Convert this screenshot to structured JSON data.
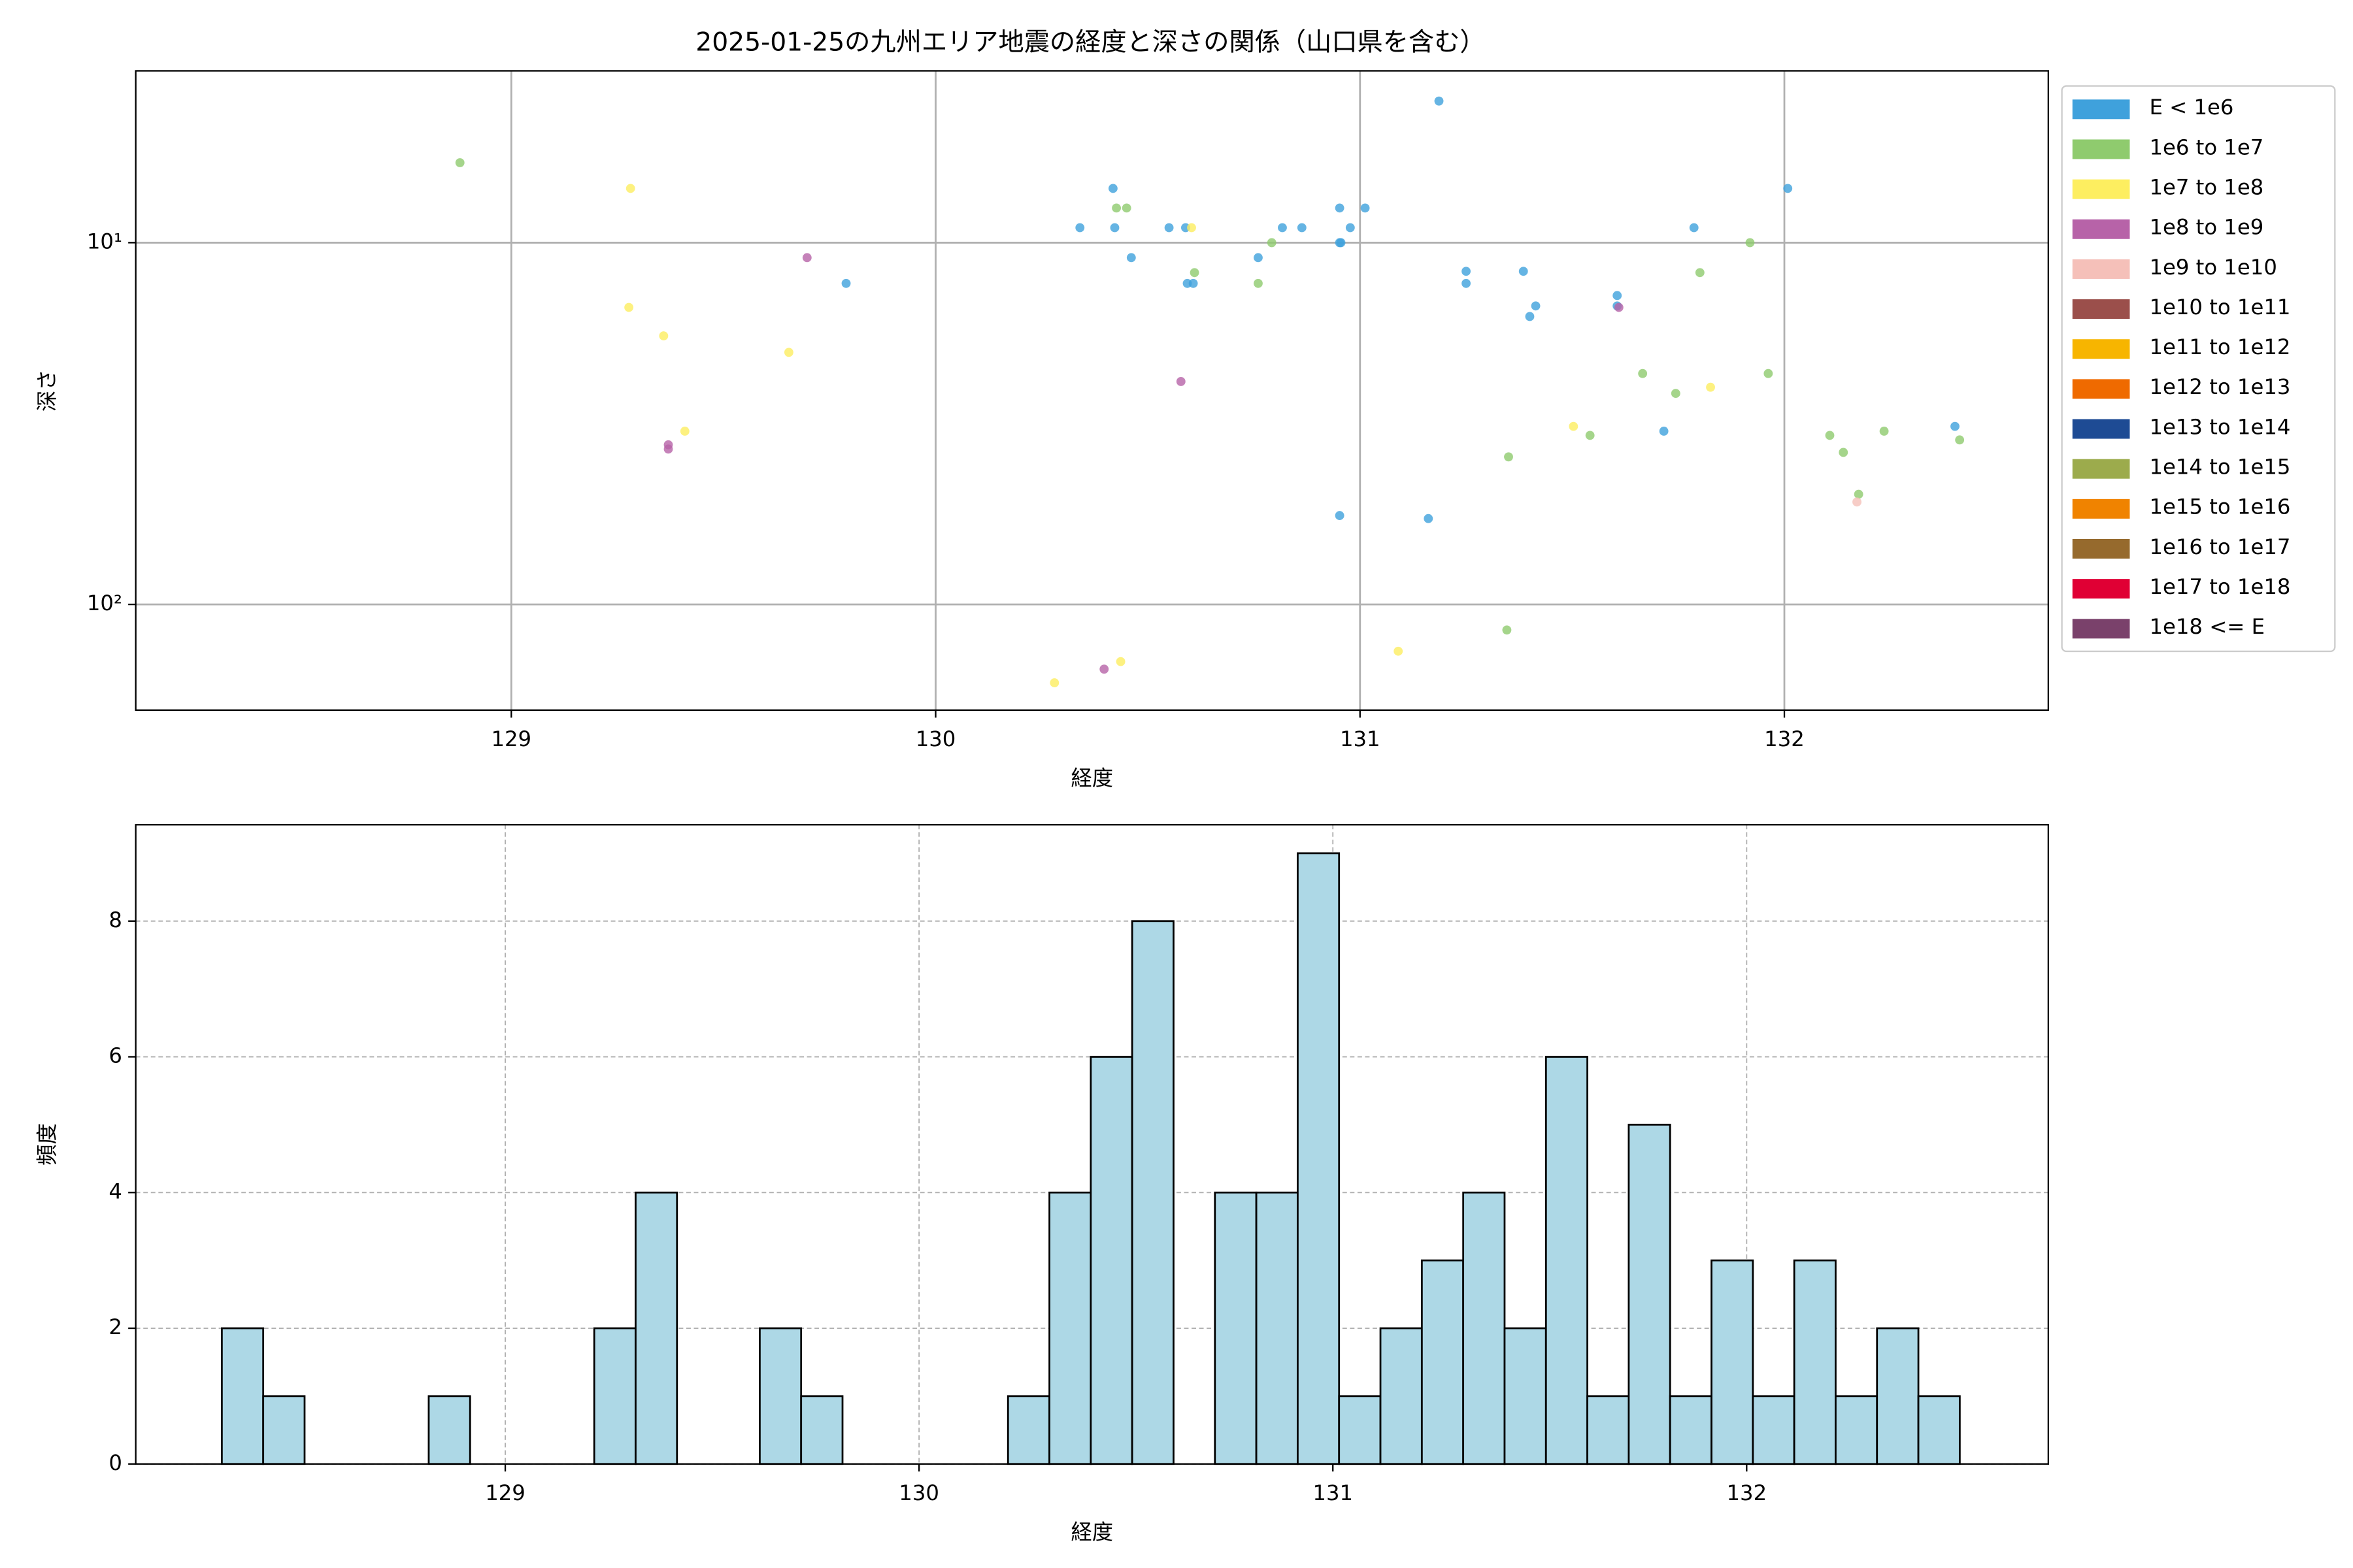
{
  "chart_data": [
    {
      "type": "scatter",
      "title": "2025-01-25の九州エリア地震の経度と深さの関係（山口県を含む）",
      "x_label": "経度",
      "y_label": "深さ",
      "xlim": [
        128.115,
        132.622
      ],
      "xticks": [
        129,
        130,
        131,
        132
      ],
      "ylim": [
        196,
        3.35
      ],
      "y_scale": "log",
      "yticks": [
        {
          "value": 10,
          "label": "10¹"
        },
        {
          "value": 100,
          "label": "10²"
        }
      ],
      "grid": true,
      "grid_linestyle": "solid",
      "legend": "outside right",
      "series": [
        {
          "name": "E < 1e6",
          "color": "#3fa1dc",
          "x": [
            131.186,
            130.418,
            130.34,
            130.422,
            130.55,
            130.589,
            130.461,
            130.593,
            130.607,
            130.817,
            130.863,
            130.952,
            131.012,
            130.977,
            130.952,
            130.955,
            130.76,
            129.789,
            131.25,
            131.25,
            131.385,
            131.414,
            131.4,
            131.606,
            131.606,
            131.787,
            132.008,
            131.716,
            132.402,
            130.952,
            131.161
          ],
          "values": [
            4.06,
            7.08,
            9.09,
            9.09,
            9.09,
            9.09,
            11.0,
            12.96,
            12.96,
            9.09,
            9.09,
            8.02,
            8.02,
            9.09,
            10,
            10,
            11.0,
            12.96,
            12.0,
            12.96,
            12.0,
            14.96,
            16.0,
            14.0,
            14.96,
            9.09,
            7.08,
            33.2,
            32.2,
            56.8,
            57.9
          ]
        },
        {
          "name": "1e6 to 1e7",
          "color": "#8fcb6e",
          "x": [
            128.879,
            130.426,
            130.45,
            130.61,
            130.792,
            130.76,
            131.919,
            131.801,
            131.666,
            131.962,
            131.744,
            131.542,
            131.35,
            132.107,
            132.235,
            132.139,
            132.175,
            132.413,
            131.346
          ],
          "values": [
            6.01,
            8.02,
            8.02,
            12.1,
            10,
            12.96,
            10,
            12.1,
            23.0,
            23.0,
            26.1,
            34.1,
            39.1,
            34.1,
            33.2,
            38.0,
            49.6,
            35.1,
            117.7
          ]
        },
        {
          "name": "1e7 to 1e8",
          "color": "#fdee60",
          "x": [
            129.281,
            129.277,
            129.359,
            129.654,
            129.409,
            130.603,
            131.503,
            131.826,
            131.09,
            130.436,
            130.28
          ],
          "values": [
            7.08,
            15.1,
            18.1,
            20.1,
            33.2,
            9.09,
            32.2,
            25.1,
            134.7,
            143.9,
            164.7
          ]
        },
        {
          "name": "1e8 to 1e9",
          "color": "#b763a8",
          "x": [
            129.697,
            130.578,
            129.37,
            129.37,
            131.61,
            130.397
          ],
          "values": [
            11.0,
            24.2,
            36.2,
            37.2,
            15.1,
            151
          ]
        },
        {
          "name": "1e9 to 1e10",
          "color": "#f5c0b9",
          "x": [
            132.171
          ],
          "values": [
            52.1
          ]
        },
        {
          "name": "1e10 to 1e11",
          "color": "#9b4f4b",
          "x": [],
          "values": []
        },
        {
          "name": "1e11 to 1e12",
          "color": "#f7b500",
          "x": [],
          "values": []
        },
        {
          "name": "1e12 to 1e13",
          "color": "#ef6a00",
          "x": [],
          "values": []
        },
        {
          "name": "1e13 to 1e14",
          "color": "#1e4b94",
          "x": [],
          "values": []
        },
        {
          "name": "1e14 to 1e15",
          "color": "#9cab4c",
          "x": [],
          "values": []
        },
        {
          "name": "1e15 to 1e16",
          "color": "#f08300",
          "x": [],
          "values": []
        },
        {
          "name": "1e16 to 1e17",
          "color": "#966a2d",
          "x": [],
          "values": []
        },
        {
          "name": "1e17 to 1e18",
          "color": "#e00034",
          "x": [],
          "values": []
        },
        {
          "name": "1e18 <= E",
          "color": "#7a416b",
          "x": [],
          "values": []
        }
      ]
    },
    {
      "type": "histogram",
      "x_label": "経度",
      "y_label": "頻度",
      "xlim": [
        128.107,
        132.729
      ],
      "xticks": [
        129,
        130,
        131,
        132
      ],
      "ylim": [
        0,
        9.42
      ],
      "yticks": [
        0,
        2,
        4,
        6,
        8
      ],
      "grid": true,
      "grid_linestyle": "dashed",
      "color": "#add8e6",
      "bins": [
        128.315,
        128.415,
        128.515,
        128.615,
        128.715,
        128.815,
        128.915,
        129.015,
        129.115,
        129.215,
        129.315,
        129.415,
        129.515,
        129.615,
        129.715,
        129.815,
        129.915,
        130.015,
        130.115,
        130.215,
        130.315,
        130.415,
        130.515,
        130.615,
        130.715,
        130.815,
        130.915,
        131.015,
        131.115,
        131.215,
        131.315,
        131.415,
        131.515,
        131.615,
        131.715,
        131.815,
        131.915,
        132.015,
        132.115,
        132.215,
        132.315,
        132.415,
        132.515
      ],
      "values": [
        2,
        1,
        0,
        0,
        0,
        1,
        0,
        0,
        0,
        2,
        4,
        0,
        0,
        2,
        1,
        0,
        0,
        0,
        0,
        1,
        4,
        6,
        8,
        0,
        4,
        4,
        9,
        1,
        2,
        3,
        4,
        2,
        6,
        1,
        5,
        1,
        3,
        1,
        3,
        1,
        2,
        1
      ]
    }
  ]
}
